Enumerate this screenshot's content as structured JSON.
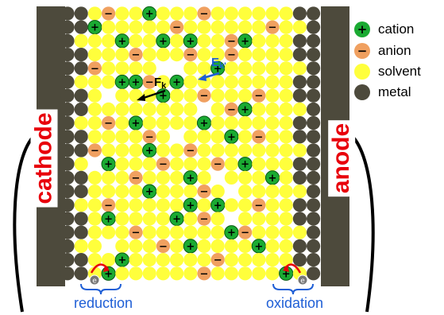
{
  "legend": {
    "cation": "cation",
    "anion": "anion",
    "solvent": "solvent",
    "metal": "metal"
  },
  "symbols": {
    "plus": "+",
    "minus": "−",
    "electron": "e"
  },
  "electrodes": {
    "left": "cathode",
    "right": "anode"
  },
  "processes": {
    "left": "reduction",
    "right": "oxidation"
  },
  "forces": {
    "fk_main": "F",
    "fk_sub": "k",
    "ek_main": "E",
    "ek_sub": "k'"
  },
  "colors": {
    "cation": "#1aaa32",
    "anion": "#f0a060",
    "solvent": "#ffff3c",
    "metal": "#4d4a3c",
    "electrode_text": "#e8000b",
    "process_text": "#1f5fd6",
    "arrow_blue": "#1f5fd6",
    "arrow_red": "#e8000b"
  }
}
